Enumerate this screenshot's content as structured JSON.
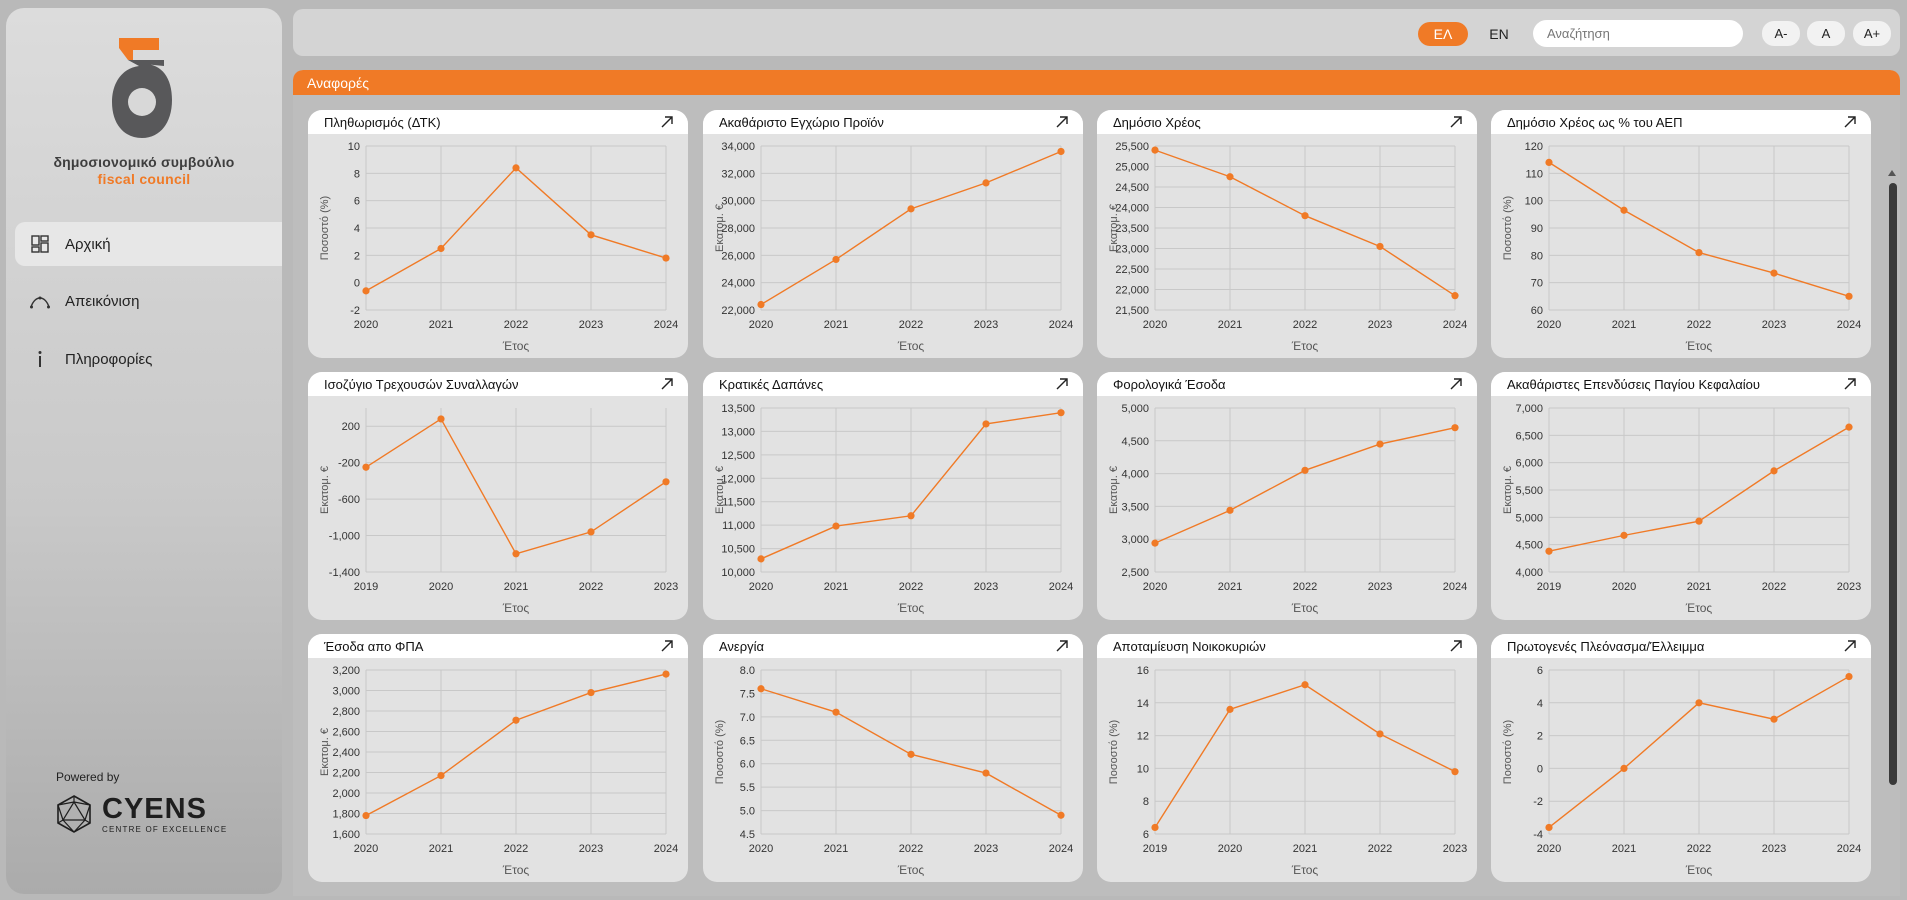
{
  "brand": {
    "name_el": "δημοσιονομικό συμβούλιο",
    "name_en": "fiscal council",
    "powered_by": "Powered by",
    "partner_name": "CYENS",
    "partner_sub": "CENTRE OF EXCELLENCE",
    "accent": "#f07a26"
  },
  "sidebar": {
    "items": [
      {
        "label": "Αρχική",
        "icon": "dashboard-icon",
        "active": true
      },
      {
        "label": "Απεικόνιση",
        "icon": "curve-icon",
        "active": false
      },
      {
        "label": "Πληροφορίες",
        "icon": "info-icon",
        "active": false
      }
    ]
  },
  "topbar": {
    "lang_el": "ΕΛ",
    "lang_en": "EN",
    "search_placeholder": "Αναζήτηση",
    "font_smaller": "A-",
    "font_normal": "A",
    "font_larger": "A+"
  },
  "section": {
    "title": "Αναφορές"
  },
  "chart_data": [
    {
      "type": "line",
      "title": "Πληθωρισμός (ΔΤΚ)",
      "xlabel": "Έτος",
      "ylabel": "Ποσοστό (%)",
      "x": [
        "2020",
        "2021",
        "2022",
        "2023",
        "2024"
      ],
      "values": [
        -0.6,
        2.5,
        8.4,
        3.5,
        1.8
      ],
      "ylim": [
        -2,
        10
      ],
      "yticks": [
        -2,
        0,
        2,
        4,
        6,
        8,
        10
      ]
    },
    {
      "type": "line",
      "title": "Ακαθάριστο Εγχώριο Προϊόν",
      "xlabel": "Έτος",
      "ylabel": "Εκατομ. €",
      "x": [
        "2020",
        "2021",
        "2022",
        "2023",
        "2024"
      ],
      "values": [
        22400,
        25700,
        29400,
        31300,
        33600
      ],
      "ylim": [
        22000,
        34000
      ],
      "yticks": [
        22000,
        24000,
        26000,
        28000,
        30000,
        32000,
        34000
      ]
    },
    {
      "type": "line",
      "title": "Δημόσιο Χρέος",
      "xlabel": "Έτος",
      "ylabel": "Εκατομ. €",
      "x": [
        "2020",
        "2021",
        "2022",
        "2023",
        "2024"
      ],
      "values": [
        25400,
        24750,
        23800,
        23050,
        21850
      ],
      "ylim": [
        21500,
        25500
      ],
      "yticks": [
        21500,
        22000,
        22500,
        23000,
        23500,
        24000,
        24500,
        25000,
        25500
      ]
    },
    {
      "type": "line",
      "title": "Δημόσιο Χρέος ως % του ΑΕΠ",
      "xlabel": "Έτος",
      "ylabel": "Ποσοστό (%)",
      "x": [
        "2020",
        "2021",
        "2022",
        "2023",
        "2024"
      ],
      "values": [
        114,
        96.5,
        81,
        73.5,
        65
      ],
      "ylim": [
        60,
        120
      ],
      "yticks": [
        60,
        70,
        80,
        90,
        100,
        110,
        120
      ]
    },
    {
      "type": "line",
      "title": "Ισοζύγιο Τρεχουσών Συναλλαγών",
      "xlabel": "Έτος",
      "ylabel": "Εκατομ. €",
      "x": [
        "2019",
        "2020",
        "2021",
        "2022",
        "2023"
      ],
      "values": [
        -250,
        280,
        -1200,
        -960,
        -410
      ],
      "ylim": [
        -1400,
        400
      ],
      "yticks": [
        -1400,
        -1000,
        -600,
        -200,
        200
      ]
    },
    {
      "type": "line",
      "title": "Κρατικές Δαπάνες",
      "xlabel": "Έτος",
      "ylabel": "Εκατομ. €",
      "x": [
        "2020",
        "2021",
        "2022",
        "2023",
        "2024"
      ],
      "values": [
        10280,
        10980,
        11200,
        13160,
        13400
      ],
      "ylim": [
        10000,
        13500
      ],
      "yticks": [
        10000,
        10500,
        11000,
        11500,
        12000,
        12500,
        13000,
        13500
      ]
    },
    {
      "type": "line",
      "title": "Φορολογικά Έσοδα",
      "xlabel": "Έτος",
      "ylabel": "Εκατομ. €",
      "x": [
        "2020",
        "2021",
        "2022",
        "2023",
        "2024"
      ],
      "values": [
        2940,
        3440,
        4050,
        4450,
        4700
      ],
      "ylim": [
        2500,
        5000
      ],
      "yticks": [
        2500,
        3000,
        3500,
        4000,
        4500,
        5000
      ]
    },
    {
      "type": "line",
      "title": "Ακαθάριστες Επενδύσεις Παγίου Κεφαλαίου",
      "xlabel": "Έτος",
      "ylabel": "Εκατομ. €",
      "x": [
        "2019",
        "2020",
        "2021",
        "2022",
        "2023"
      ],
      "values": [
        4380,
        4670,
        4930,
        5850,
        6650
      ],
      "ylim": [
        4000,
        7000
      ],
      "yticks": [
        4000,
        4500,
        5000,
        5500,
        6000,
        6500,
        7000
      ]
    },
    {
      "type": "line",
      "title": "Έσοδα απο ΦΠΑ",
      "xlabel": "Έτος",
      "ylabel": "Εκατομ. €",
      "x": [
        "2020",
        "2021",
        "2022",
        "2023",
        "2024"
      ],
      "values": [
        1780,
        2170,
        2710,
        2980,
        3160
      ],
      "ylim": [
        1600,
        3200
      ],
      "yticks": [
        1600,
        1800,
        2000,
        2200,
        2400,
        2600,
        2800,
        3000,
        3200
      ]
    },
    {
      "type": "line",
      "title": "Ανεργία",
      "xlabel": "Έτος",
      "ylabel": "Ποσοστό (%)",
      "x": [
        "2020",
        "2021",
        "2022",
        "2023",
        "2024"
      ],
      "values": [
        7.6,
        7.1,
        6.2,
        5.8,
        4.9
      ],
      "ylim": [
        4.5,
        8.0
      ],
      "yticks": [
        4.5,
        5.0,
        5.5,
        6.0,
        6.5,
        7.0,
        7.5,
        8.0
      ]
    },
    {
      "type": "line",
      "title": "Αποταμίευση Νοικοκυριών",
      "xlabel": "Έτος",
      "ylabel": "Ποσοστό (%)",
      "x": [
        "2019",
        "2020",
        "2021",
        "2022",
        "2023"
      ],
      "values": [
        6.4,
        13.6,
        15.1,
        12.1,
        9.8
      ],
      "ylim": [
        6,
        16
      ],
      "yticks": [
        6,
        8,
        10,
        12,
        14,
        16
      ]
    },
    {
      "type": "line",
      "title": "Πρωτογενές Πλεόνασμα/Έλλειμμα",
      "xlabel": "Έτος",
      "ylabel": "Ποσοστό (%)",
      "x": [
        "2020",
        "2021",
        "2022",
        "2023",
        "2024"
      ],
      "values": [
        -3.6,
        0.0,
        4.0,
        3.0,
        5.6
      ],
      "ylim": [
        -4,
        6
      ],
      "yticks": [
        -4,
        -2,
        0,
        2,
        4,
        6
      ]
    }
  ]
}
